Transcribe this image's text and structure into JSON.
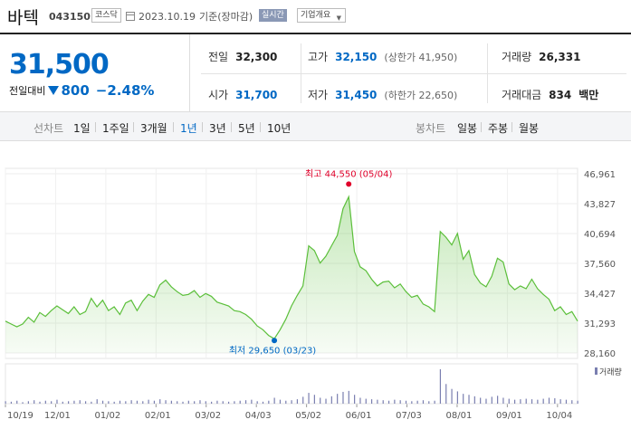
{
  "header": {
    "name": "바텍",
    "code": "043150",
    "market": "코스닥",
    "date": "2023.10.19",
    "basis": "기준(장마감)",
    "realtime": "실시간",
    "overview": "기업개요"
  },
  "summary": {
    "price": "31,500",
    "change_label": "전일대비",
    "change": "800",
    "rate": "−2.48%",
    "rows": {
      "prev_label": "전일",
      "prev": "32,300",
      "high_label": "고가",
      "high": "32,150",
      "upper": "(상한가 41,950)",
      "volume_label": "거래량",
      "volume": "26,331",
      "open_label": "시가",
      "open": "31,700",
      "low_label": "저가",
      "low": "31,450",
      "lower": "(하한가 22,650)",
      "amount_label": "거래대금",
      "amount": "834",
      "amount_unit": "백만"
    }
  },
  "tabs": {
    "line": "선차트",
    "d1": "1일",
    "w1": "1주일",
    "m3": "3개월",
    "y1": "1년",
    "y3": "3년",
    "y5": "5년",
    "y10": "10년",
    "candle": "봉차트",
    "daily": "일봉",
    "weekly": "주봉",
    "monthly": "월봉"
  },
  "colors": {
    "accent": "#0068c4",
    "line": "#5bbf3a",
    "fill": "#e6f5df",
    "high": "#e0002a",
    "low": "#0068c4"
  },
  "chart_data": {
    "type": "area",
    "ylim": [
      28160,
      46961
    ],
    "yticks": [
      "46,961",
      "43,827",
      "40,694",
      "37,560",
      "34,427",
      "31,293",
      "28,160"
    ],
    "xticks": [
      "10/19",
      "12/01",
      "01/02",
      "02/01",
      "03/02",
      "04/03",
      "05/02",
      "06/01",
      "07/03",
      "08/01",
      "09/01",
      "10/04"
    ],
    "high_label": "최고 44,550 (05/04)",
    "low_label": "최저 29,650 (03/23)",
    "volume_label": "거래량",
    "values": [
      31500,
      31200,
      30900,
      31200,
      31900,
      31400,
      32400,
      32000,
      32600,
      33100,
      32700,
      32300,
      33000,
      32200,
      32500,
      33900,
      33000,
      33700,
      32600,
      33000,
      32200,
      33400,
      33700,
      32600,
      33600,
      34300,
      34000,
      35300,
      35800,
      35100,
      34600,
      34200,
      34300,
      34700,
      34000,
      34400,
      34100,
      33500,
      33300,
      33100,
      32600,
      32500,
      32200,
      31700,
      31000,
      30600,
      30000,
      29650,
      30600,
      31700,
      33100,
      34200,
      35200,
      39400,
      38900,
      37600,
      38300,
      39400,
      40500,
      43300,
      44550,
      38800,
      37200,
      36800,
      35900,
      35200,
      35600,
      35700,
      35000,
      35400,
      34600,
      34000,
      34200,
      33300,
      33000,
      32500,
      40900,
      40300,
      39500,
      40700,
      38000,
      38900,
      36400,
      35500,
      35100,
      36200,
      38100,
      37700,
      35400,
      34800,
      35200,
      34900,
      35900,
      34900,
      34300,
      33800,
      32600,
      33000,
      32200,
      32500,
      31500
    ],
    "volumes": [
      5,
      4,
      6,
      3,
      5,
      7,
      4,
      6,
      5,
      8,
      4,
      5,
      6,
      7,
      5,
      4,
      9,
      6,
      5,
      4,
      6,
      5,
      7,
      6,
      5,
      8,
      6,
      9,
      7,
      6,
      5,
      4,
      6,
      5,
      7,
      5,
      4,
      6,
      5,
      4,
      5,
      6,
      7,
      8,
      5,
      4,
      6,
      12,
      8,
      6,
      7,
      9,
      14,
      22,
      18,
      12,
      10,
      15,
      20,
      24,
      26,
      18,
      12,
      10,
      9,
      8,
      7,
      6,
      8,
      7,
      6,
      5,
      6,
      7,
      5,
      6,
      70,
      40,
      30,
      25,
      20,
      18,
      15,
      12,
      10,
      14,
      16,
      12,
      10,
      8,
      9,
      10,
      9,
      8,
      10,
      12,
      11,
      9,
      8,
      7,
      6
    ]
  }
}
